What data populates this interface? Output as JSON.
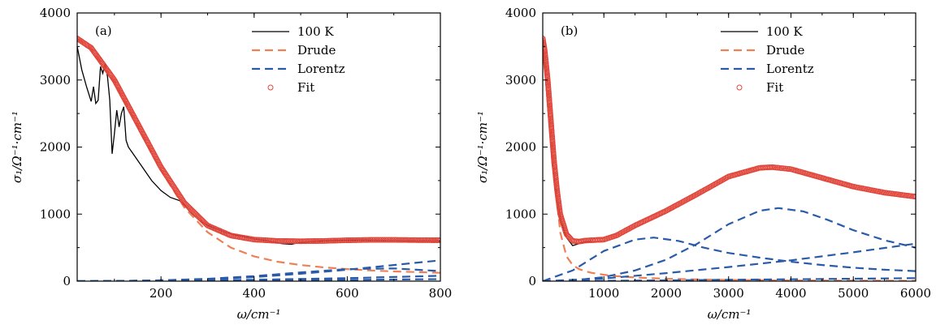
{
  "chart_data": [
    {
      "type": "line",
      "panel_label": "(a)",
      "xlabel": "ω/cm⁻¹",
      "ylabel": "σ₁/Ω⁻¹·cm⁻¹",
      "xlim": [
        20,
        800
      ],
      "ylim": [
        0,
        4000
      ],
      "xticks": [
        200,
        400,
        600,
        800
      ],
      "yticks": [
        0,
        1000,
        2000,
        3000,
        4000
      ],
      "legend_position": "top-right",
      "series": [
        {
          "name": "100 K",
          "style": "solid",
          "color": "#000000",
          "x": [
            20,
            30,
            40,
            50,
            55,
            60,
            65,
            70,
            75,
            80,
            85,
            90,
            95,
            100,
            105,
            110,
            115,
            120,
            125,
            130,
            140,
            160,
            180,
            200,
            220,
            240,
            250,
            260,
            280,
            300,
            320,
            340,
            360,
            380,
            400,
            430,
            460,
            480,
            500,
            550,
            600,
            650,
            700,
            750,
            800
          ],
          "y": [
            3500,
            3150,
            2900,
            2680,
            2900,
            2650,
            2700,
            3200,
            3100,
            3250,
            3050,
            2700,
            1900,
            2200,
            2550,
            2300,
            2500,
            2600,
            2100,
            2000,
            1900,
            1700,
            1500,
            1350,
            1250,
            1200,
            1150,
            1050,
            920,
            830,
            780,
            720,
            690,
            660,
            630,
            600,
            560,
            550,
            580,
            600,
            610,
            610,
            605,
            600,
            600
          ]
        },
        {
          "name": "Drude",
          "style": "dashed",
          "color": "#ef7f55",
          "x": [
            20,
            50,
            100,
            150,
            200,
            250,
            300,
            350,
            400,
            450,
            500,
            550,
            600,
            650,
            700,
            750,
            800
          ],
          "y": [
            3620,
            3470,
            2980,
            2320,
            1650,
            1100,
            730,
            500,
            370,
            290,
            240,
            205,
            180,
            160,
            145,
            135,
            125
          ]
        },
        {
          "name": "Lorentz",
          "style": "dashed",
          "color": "#2a5ba8",
          "x": [
            20,
            100,
            200,
            300,
            400,
            500,
            600,
            700,
            800
          ],
          "y": [
            0,
            3,
            12,
            30,
            60,
            110,
            170,
            240,
            310
          ]
        },
        {
          "name": "",
          "style": "dashed",
          "color": "#2a5ba8",
          "x": [
            20,
            100,
            200,
            300,
            400,
            500,
            600,
            700,
            800
          ],
          "y": [
            0,
            3,
            12,
            35,
            75,
            130,
            180,
            190,
            150
          ]
        },
        {
          "name": "",
          "style": "dashed",
          "color": "#2a5ba8",
          "x": [
            20,
            200,
            400,
            600,
            800
          ],
          "y": [
            0,
            5,
            20,
            45,
            80
          ]
        },
        {
          "name": "",
          "style": "dashed",
          "color": "#2a5ba8",
          "x": [
            20,
            200,
            400,
            600,
            800
          ],
          "y": [
            0,
            2,
            8,
            18,
            30
          ]
        },
        {
          "name": "Fit",
          "style": "markers",
          "color": "#e0453a",
          "x": [
            20,
            50,
            100,
            150,
            200,
            250,
            300,
            350,
            400,
            450,
            500,
            550,
            600,
            650,
            700,
            750,
            800
          ],
          "y": [
            3620,
            3480,
            3000,
            2350,
            1700,
            1170,
            830,
            680,
            620,
            600,
            595,
            600,
            610,
            615,
            615,
            612,
            610
          ]
        }
      ]
    },
    {
      "type": "line",
      "panel_label": "(b)",
      "xlabel": "ω/cm⁻¹",
      "ylabel": "σ₁/Ω⁻¹·cm⁻¹",
      "xlim": [
        20,
        6000
      ],
      "ylim": [
        0,
        4000
      ],
      "xticks": [
        1000,
        2000,
        3000,
        4000,
        5000,
        6000
      ],
      "yticks": [
        0,
        1000,
        2000,
        3000,
        4000
      ],
      "legend_position": "top-right",
      "series": [
        {
          "name": "100 K",
          "style": "solid",
          "color": "#000000",
          "x": [
            20,
            50,
            100,
            150,
            200,
            300,
            400,
            500,
            600,
            700,
            800
          ],
          "y": [
            3500,
            3200,
            2600,
            2000,
            1550,
            950,
            650,
            530,
            560,
            590,
            600
          ]
        },
        {
          "name": "Drude",
          "style": "dashed",
          "color": "#ef7f55",
          "x": [
            20,
            100,
            200,
            300,
            400,
            500,
            600,
            700,
            800,
            1000,
            1200,
            1500,
            2000,
            2500,
            3000,
            4000,
            6000
          ],
          "y": [
            3620,
            2980,
            1650,
            730,
            370,
            240,
            180,
            150,
            125,
            95,
            75,
            55,
            35,
            25,
            18,
            10,
            5
          ]
        },
        {
          "name": "Lorentz",
          "style": "dashed",
          "color": "#2a5ba8",
          "x": [
            20,
            500,
            1000,
            1500,
            1800,
            2200,
            2600,
            3000,
            3500,
            4000,
            4500,
            5000,
            5500,
            6000
          ],
          "y": [
            0,
            160,
            450,
            620,
            650,
            600,
            500,
            420,
            350,
            290,
            240,
            200,
            170,
            150
          ]
        },
        {
          "name": "",
          "style": "dashed",
          "color": "#2a5ba8",
          "x": [
            20,
            500,
            1000,
            1500,
            2000,
            2500,
            3000,
            3500,
            3800,
            4200,
            4600,
            5000,
            5500,
            6000
          ],
          "y": [
            0,
            10,
            60,
            160,
            320,
            560,
            850,
            1050,
            1090,
            1040,
            910,
            760,
            610,
            500
          ]
        },
        {
          "name": "",
          "style": "dashed",
          "color": "#2a5ba8",
          "x": [
            20,
            1000,
            2000,
            3000,
            4000,
            5000,
            6000
          ],
          "y": [
            0,
            40,
            120,
            210,
            310,
            430,
            560
          ]
        },
        {
          "name": "",
          "style": "dashed",
          "color": "#2a5ba8",
          "x": [
            20,
            1000,
            2000,
            3000,
            4000,
            5000,
            6000
          ],
          "y": [
            0,
            5,
            12,
            20,
            28,
            36,
            45
          ]
        },
        {
          "name": "Fit",
          "style": "markers",
          "color": "#e0453a",
          "x": [
            20,
            50,
            100,
            150,
            200,
            250,
            300,
            400,
            500,
            600,
            700,
            800,
            900,
            1000,
            1200,
            1500,
            2000,
            2500,
            3000,
            3500,
            3700,
            4000,
            4500,
            5000,
            5500,
            6000
          ],
          "y": [
            3620,
            3450,
            3000,
            2400,
            1800,
            1350,
            1000,
            700,
            600,
            590,
            605,
            610,
            615,
            620,
            680,
            830,
            1050,
            1300,
            1560,
            1690,
            1700,
            1670,
            1540,
            1410,
            1320,
            1260
          ]
        }
      ]
    }
  ]
}
